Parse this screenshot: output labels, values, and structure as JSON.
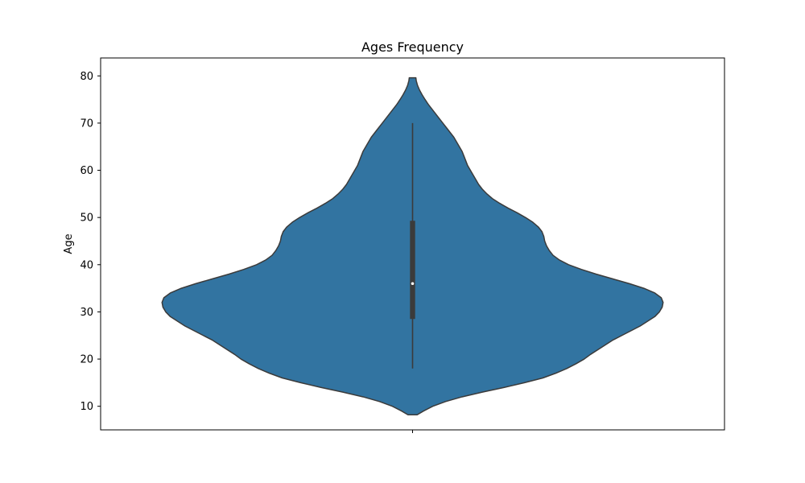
{
  "chart_data": {
    "type": "violin",
    "title": "Ages Frequency",
    "xlabel": "",
    "ylabel": "Age",
    "ylim": [
      5.0,
      83.8
    ],
    "yticks": [
      10,
      20,
      30,
      40,
      50,
      60,
      70,
      80
    ],
    "grid": false,
    "colors": {
      "fill": "#3274a1",
      "outline": "#3b3b3b",
      "box": "#3b3b3b",
      "median": "#ffffff"
    },
    "violin": {
      "min": 8.2,
      "max": 79.6,
      "box": {
        "min": 18,
        "q1": 28.5,
        "median": 36,
        "q3": 49.3,
        "max": 70
      },
      "density_profile": [
        [
          8.2,
          0.025
        ],
        [
          9.0,
          0.06
        ],
        [
          10.0,
          0.11
        ],
        [
          11.0,
          0.18
        ],
        [
          12.0,
          0.27
        ],
        [
          13.0,
          0.38
        ],
        [
          14.0,
          0.5
        ],
        [
          15.0,
          0.61
        ],
        [
          16.0,
          0.71
        ],
        [
          17.0,
          0.78
        ],
        [
          18.0,
          0.84
        ],
        [
          19.0,
          0.89
        ],
        [
          20.0,
          0.935
        ],
        [
          21.0,
          0.97
        ],
        [
          22.0,
          1.01
        ],
        [
          23.0,
          1.05
        ],
        [
          24.0,
          1.09
        ],
        [
          25.0,
          1.14
        ],
        [
          26.0,
          1.19
        ],
        [
          27.0,
          1.24
        ],
        [
          28.0,
          1.28
        ],
        [
          29.0,
          1.32
        ],
        [
          30.0,
          1.345
        ],
        [
          31.0,
          1.36
        ],
        [
          32.0,
          1.365
        ],
        [
          33.0,
          1.355
        ],
        [
          34.0,
          1.32
        ],
        [
          35.0,
          1.26
        ],
        [
          36.0,
          1.18
        ],
        [
          37.0,
          1.09
        ],
        [
          38.0,
          1.0
        ],
        [
          39.0,
          0.92
        ],
        [
          40.0,
          0.85
        ],
        [
          41.0,
          0.8
        ],
        [
          42.0,
          0.765
        ],
        [
          43.0,
          0.745
        ],
        [
          44.0,
          0.73
        ],
        [
          45.0,
          0.72
        ],
        [
          46.0,
          0.715
        ],
        [
          47.0,
          0.705
        ],
        [
          48.0,
          0.685
        ],
        [
          49.0,
          0.655
        ],
        [
          50.0,
          0.615
        ],
        [
          51.0,
          0.57
        ],
        [
          52.0,
          0.52
        ],
        [
          53.0,
          0.475
        ],
        [
          54.0,
          0.435
        ],
        [
          55.0,
          0.405
        ],
        [
          56.0,
          0.38
        ],
        [
          57.0,
          0.36
        ],
        [
          58.0,
          0.345
        ],
        [
          59.0,
          0.33
        ],
        [
          60.0,
          0.315
        ],
        [
          61.0,
          0.3
        ],
        [
          62.0,
          0.29
        ],
        [
          63.0,
          0.28
        ],
        [
          64.0,
          0.27
        ],
        [
          65.0,
          0.255
        ],
        [
          66.0,
          0.24
        ],
        [
          67.0,
          0.225
        ],
        [
          68.0,
          0.205
        ],
        [
          69.0,
          0.185
        ],
        [
          70.0,
          0.165
        ],
        [
          71.0,
          0.145
        ],
        [
          72.0,
          0.125
        ],
        [
          73.0,
          0.105
        ],
        [
          74.0,
          0.085
        ],
        [
          75.0,
          0.068
        ],
        [
          76.0,
          0.052
        ],
        [
          77.0,
          0.038
        ],
        [
          78.0,
          0.027
        ],
        [
          79.0,
          0.02
        ],
        [
          79.6,
          0.018
        ]
      ]
    }
  }
}
